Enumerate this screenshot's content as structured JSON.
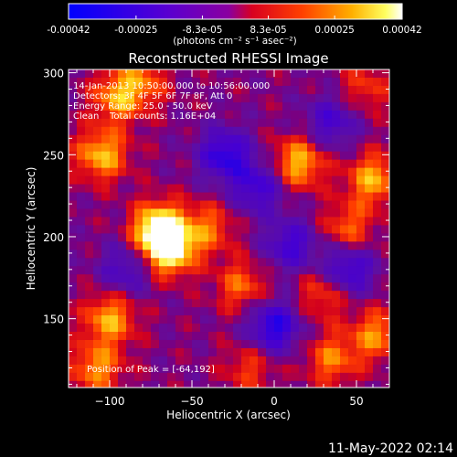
{
  "colorbar": {
    "tick_labels": [
      "-0.00042",
      "-0.00025",
      "-8.3e-05",
      "8.3e-05",
      "0.00025",
      "0.00042"
    ],
    "tick_values": [
      -0.00042,
      -0.00025,
      -8.3e-05,
      8.3e-05,
      0.00025,
      0.00042
    ],
    "range": [
      -0.00042,
      0.00042
    ],
    "units_label": "(photons cm⁻² s⁻¹ asec⁻²)",
    "colors": [
      "#0000ff",
      "#6a00c8",
      "#ff0000",
      "#ff7f00",
      "#ffff00",
      "#ffffff"
    ]
  },
  "chart_data": {
    "type": "heatmap",
    "title": "Reconstructed RHESSI Image",
    "xlabel": "Heliocentric X (arcsec)",
    "ylabel": "Heliocentric Y (arcsec)",
    "xlim": [
      -125,
      70
    ],
    "ylim": [
      108,
      302
    ],
    "x_ticks": [
      -100,
      -50,
      0,
      50
    ],
    "y_ticks": [
      150,
      200,
      250,
      300
    ],
    "x_tick_labels": [
      "−100",
      "−50",
      "0",
      "50"
    ],
    "y_tick_labels": [
      "150",
      "200",
      "250",
      "300"
    ],
    "peak": {
      "x": -64,
      "y": 192
    },
    "hotspots": [
      {
        "x": -70,
        "y": 205,
        "value": 0.00042
      },
      {
        "x": -64,
        "y": 192,
        "value": 0.0004
      },
      {
        "x": -105,
        "y": 250,
        "value": 0.0003
      },
      {
        "x": -95,
        "y": 285,
        "value": 0.00026
      },
      {
        "x": -100,
        "y": 150,
        "value": 0.00028
      },
      {
        "x": -108,
        "y": 120,
        "value": 0.00025
      },
      {
        "x": -20,
        "y": 170,
        "value": 0.0002
      },
      {
        "x": 15,
        "y": 245,
        "value": 0.0003
      },
      {
        "x": 60,
        "y": 235,
        "value": 0.00028
      },
      {
        "x": 45,
        "y": 205,
        "value": 0.0002
      },
      {
        "x": 30,
        "y": 165,
        "value": 0.00018
      },
      {
        "x": 35,
        "y": 125,
        "value": 0.00022
      },
      {
        "x": 62,
        "y": 140,
        "value": 0.00024
      },
      {
        "x": -40,
        "y": 205,
        "value": 0.0002
      },
      {
        "x": -80,
        "y": 295,
        "value": 0.00018
      },
      {
        "x": -15,
        "y": 120,
        "value": 0.00015
      },
      {
        "x": 55,
        "y": 290,
        "value": 0.00015
      }
    ],
    "coldspots": [
      {
        "x": -30,
        "y": 250,
        "value": -0.0003
      },
      {
        "x": 0,
        "y": 145,
        "value": -0.00032
      },
      {
        "x": 45,
        "y": 180,
        "value": -0.00028
      },
      {
        "x": -10,
        "y": 230,
        "value": -0.00025
      },
      {
        "x": 35,
        "y": 270,
        "value": -0.00022
      },
      {
        "x": -90,
        "y": 180,
        "value": -0.0002
      },
      {
        "x": 10,
        "y": 195,
        "value": -0.00024
      }
    ]
  },
  "annotations": {
    "time_range": "14-Jan-2013 10:50:00.000 to 10:56:00.000",
    "detectors": "Detectors: 3F 4F 5F 6F 7F 8F, Att 0",
    "energy_range": "Energy Range: 25.0 - 50.0 keV",
    "method": "Clean",
    "total_counts": "Total counts: 1.16E+04",
    "peak_position": "Position of Peak = [-64,192]"
  },
  "footer": {
    "date": "11-May-2022 02:14"
  }
}
